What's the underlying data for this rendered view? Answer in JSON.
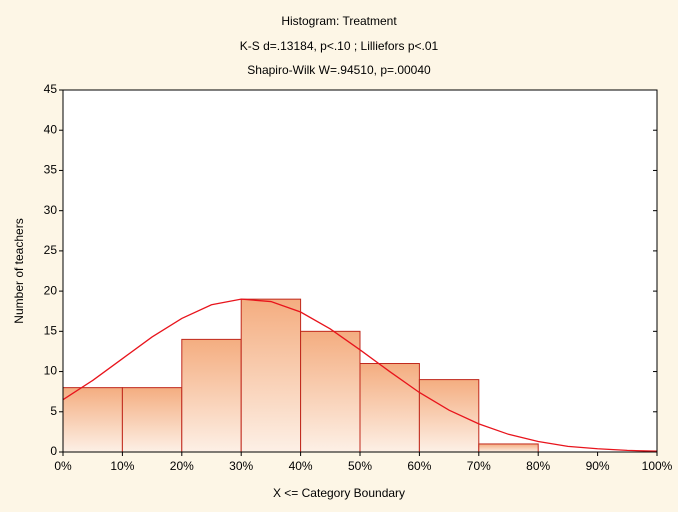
{
  "chart_data": {
    "type": "histogram",
    "title": "Histogram: Treatment",
    "subtitles": [
      "K-S d=.13184, p<.10 ; Lilliefors p<.01",
      "Shapiro-Wilk W=.94510, p=.00040"
    ],
    "x_label": "X <= Category Boundary",
    "y_label": "Number of teachers",
    "bins": [
      0,
      10,
      20,
      30,
      40,
      50,
      60,
      70,
      80,
      90,
      100
    ],
    "values": [
      8,
      8,
      14,
      19,
      15,
      11,
      9,
      1,
      0,
      0
    ],
    "color": "#f4ad80",
    "edge_color": "#c0281c",
    "curve": {
      "color": "#e8141c",
      "x": [
        0,
        5,
        10,
        15,
        20,
        25,
        30,
        35,
        40,
        45,
        50,
        55,
        60,
        65,
        70,
        75,
        80,
        85,
        90,
        95,
        100
      ],
      "values": [
        6.5,
        8.9,
        11.6,
        14.3,
        16.6,
        18.3,
        19.0,
        18.7,
        17.4,
        15.3,
        12.7,
        10.0,
        7.4,
        5.2,
        3.5,
        2.2,
        1.3,
        0.7,
        0.4,
        0.2,
        0.1
      ]
    },
    "xlim": [
      0,
      100
    ],
    "xticks": [
      {
        "value": 0,
        "label": "0%"
      },
      {
        "value": 10,
        "label": "10%"
      },
      {
        "value": 20,
        "label": "20%"
      },
      {
        "value": 30,
        "label": "30%"
      },
      {
        "value": 40,
        "label": "40%"
      },
      {
        "value": 50,
        "label": "50%"
      },
      {
        "value": 60,
        "label": "60%"
      },
      {
        "value": 70,
        "label": "70%"
      },
      {
        "value": 80,
        "label": "80%"
      },
      {
        "value": 90,
        "label": "90%"
      },
      {
        "value": 100,
        "label": "100%"
      }
    ],
    "ylim": [
      0,
      45
    ],
    "yticks": [
      0,
      5,
      10,
      15,
      20,
      25,
      30,
      35,
      40,
      45
    ],
    "grid": false
  }
}
